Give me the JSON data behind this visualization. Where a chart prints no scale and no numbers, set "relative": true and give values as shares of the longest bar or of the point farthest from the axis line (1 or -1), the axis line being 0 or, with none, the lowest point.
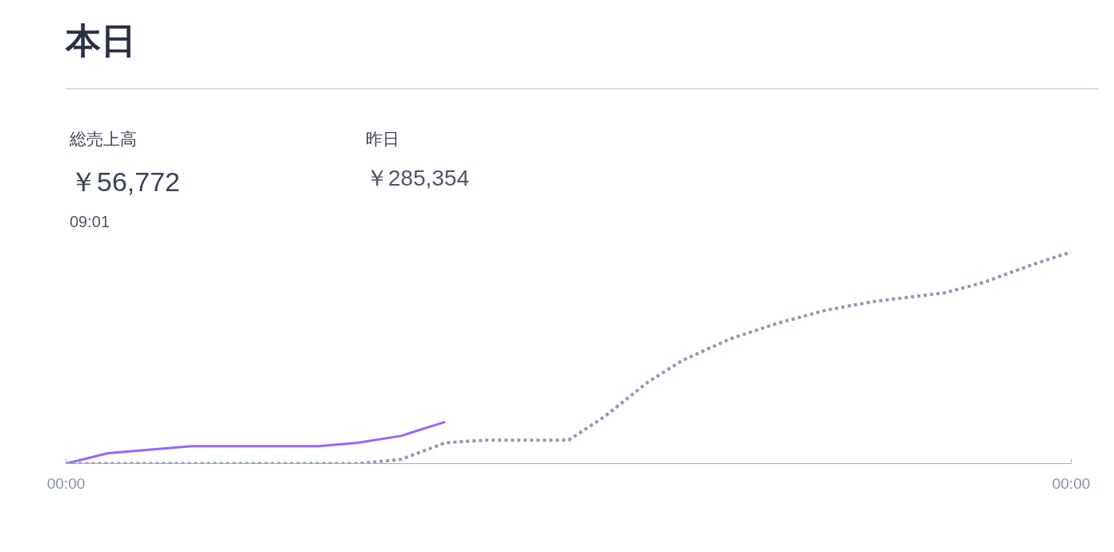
{
  "chart_data": {
    "type": "line",
    "title": "本日",
    "relative": true,
    "annotations": [
      "総売上高",
      "￥56,772",
      "09:01",
      "昨日",
      "￥285,354"
    ],
    "xlim": [
      0,
      24
    ],
    "xticks": [
      {
        "value": 0,
        "label": "00:00"
      },
      {
        "value": 24,
        "label": "00:00"
      }
    ],
    "grid": false,
    "marker": "none",
    "series": [
      {
        "color": "#9966ff",
        "line_style": "solid",
        "x": [
          0,
          1.0,
          2.99,
          6.02,
          6.96,
          8.0,
          9.05
        ],
        "values": [
          0,
          0.049,
          0.082,
          0.082,
          0.098,
          0.131,
          0.197
        ]
      },
      {
        "color": "#8f9bb3",
        "line_style": "dotted",
        "x": [
          0,
          6.97,
          8.0,
          9.05,
          10.0,
          12.0,
          12.85,
          13.89,
          14.72,
          15.86,
          17.0,
          18.14,
          19.27,
          20.97,
          21.92,
          23.05,
          24
        ],
        "values": [
          0,
          0,
          0.02,
          0.098,
          0.111,
          0.111,
          0.221,
          0.385,
          0.488,
          0.59,
          0.664,
          0.725,
          0.766,
          0.807,
          0.857,
          0.939,
          1.0
        ]
      }
    ]
  }
}
